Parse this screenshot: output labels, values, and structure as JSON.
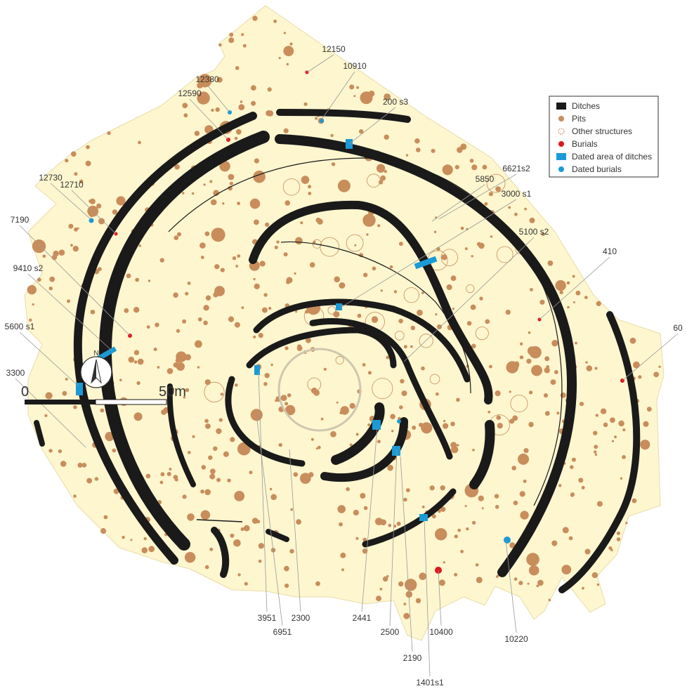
{
  "legend": {
    "items": [
      "Ditches",
      "Pits",
      "Other structures",
      "Burials",
      "Dated area of ditches",
      "Dated burials"
    ]
  },
  "labels": [
    "12150",
    "10910",
    "12380",
    "12590",
    "200 s3",
    "12730",
    "12710",
    "5850",
    "6621s2",
    "3000 s1",
    "7190",
    "5100 s2",
    "410",
    "9410 s2",
    "5600 s1",
    "60",
    "3300",
    "3951",
    "2300",
    "6951",
    "2441",
    "2500",
    "2190",
    "10400",
    "1401s1",
    "10220"
  ],
  "scale": {
    "start": "0",
    "end": "50m"
  },
  "north": "N"
}
